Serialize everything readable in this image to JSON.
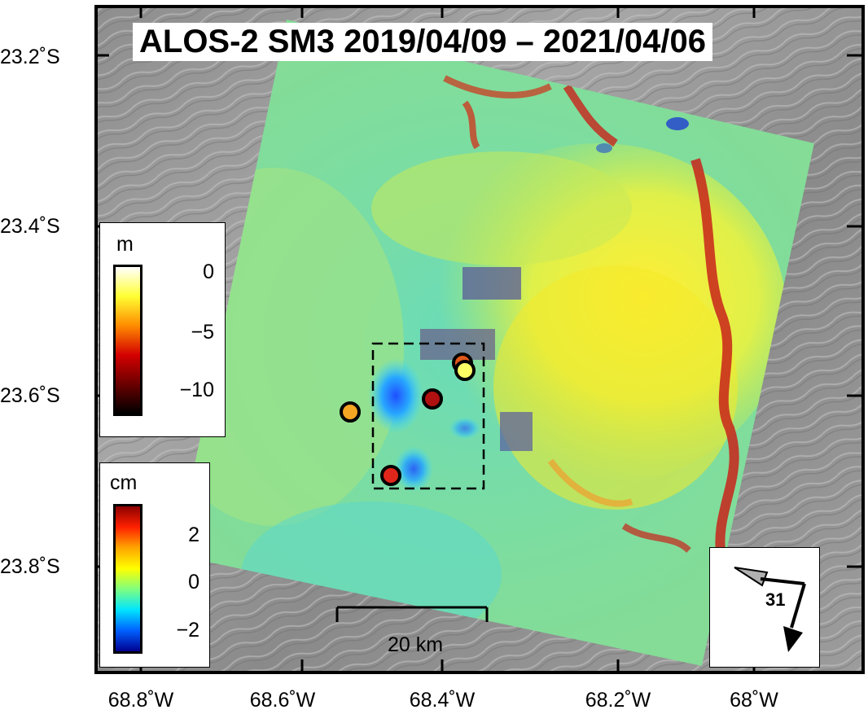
{
  "title": "ALOS-2 SM3 2019/04/09 – 2021/04/06",
  "y_axis_labels": [
    "23.2˚S",
    "23.4˚S",
    "23.6˚S",
    "23.8˚S"
  ],
  "x_axis_labels": [
    "68.8˚W",
    "68.6˚W",
    "68.4˚W",
    "68.2˚W",
    "68˚W"
  ],
  "legend_m": {
    "unit": "m",
    "ticks": [
      "0",
      "−5",
      "−10"
    ],
    "colors": [
      "#ffffff",
      "#ffff33",
      "#ff8c00",
      "#d40000",
      "#6a0000",
      "#000000"
    ]
  },
  "legend_cm": {
    "unit": "cm",
    "ticks": [
      "2",
      "0",
      "−2"
    ],
    "colors": [
      "#8b0000",
      "#ff2000",
      "#ffa500",
      "#ffff00",
      "#7fff7f",
      "#00e5ff",
      "#0060ff",
      "#000090"
    ]
  },
  "scale_bar": {
    "label": "20 km"
  },
  "look_direction": {
    "label": "31"
  },
  "markers": [
    {
      "name": "marker-orange-west",
      "color": "#f5a623"
    },
    {
      "name": "marker-darkred-center",
      "color": "#b01010"
    },
    {
      "name": "marker-red-south",
      "color": "#e0261a"
    },
    {
      "name": "marker-orange-northeast",
      "color": "#e0581a"
    },
    {
      "name": "marker-yellow-northeast",
      "color": "#ffff66"
    }
  ]
}
